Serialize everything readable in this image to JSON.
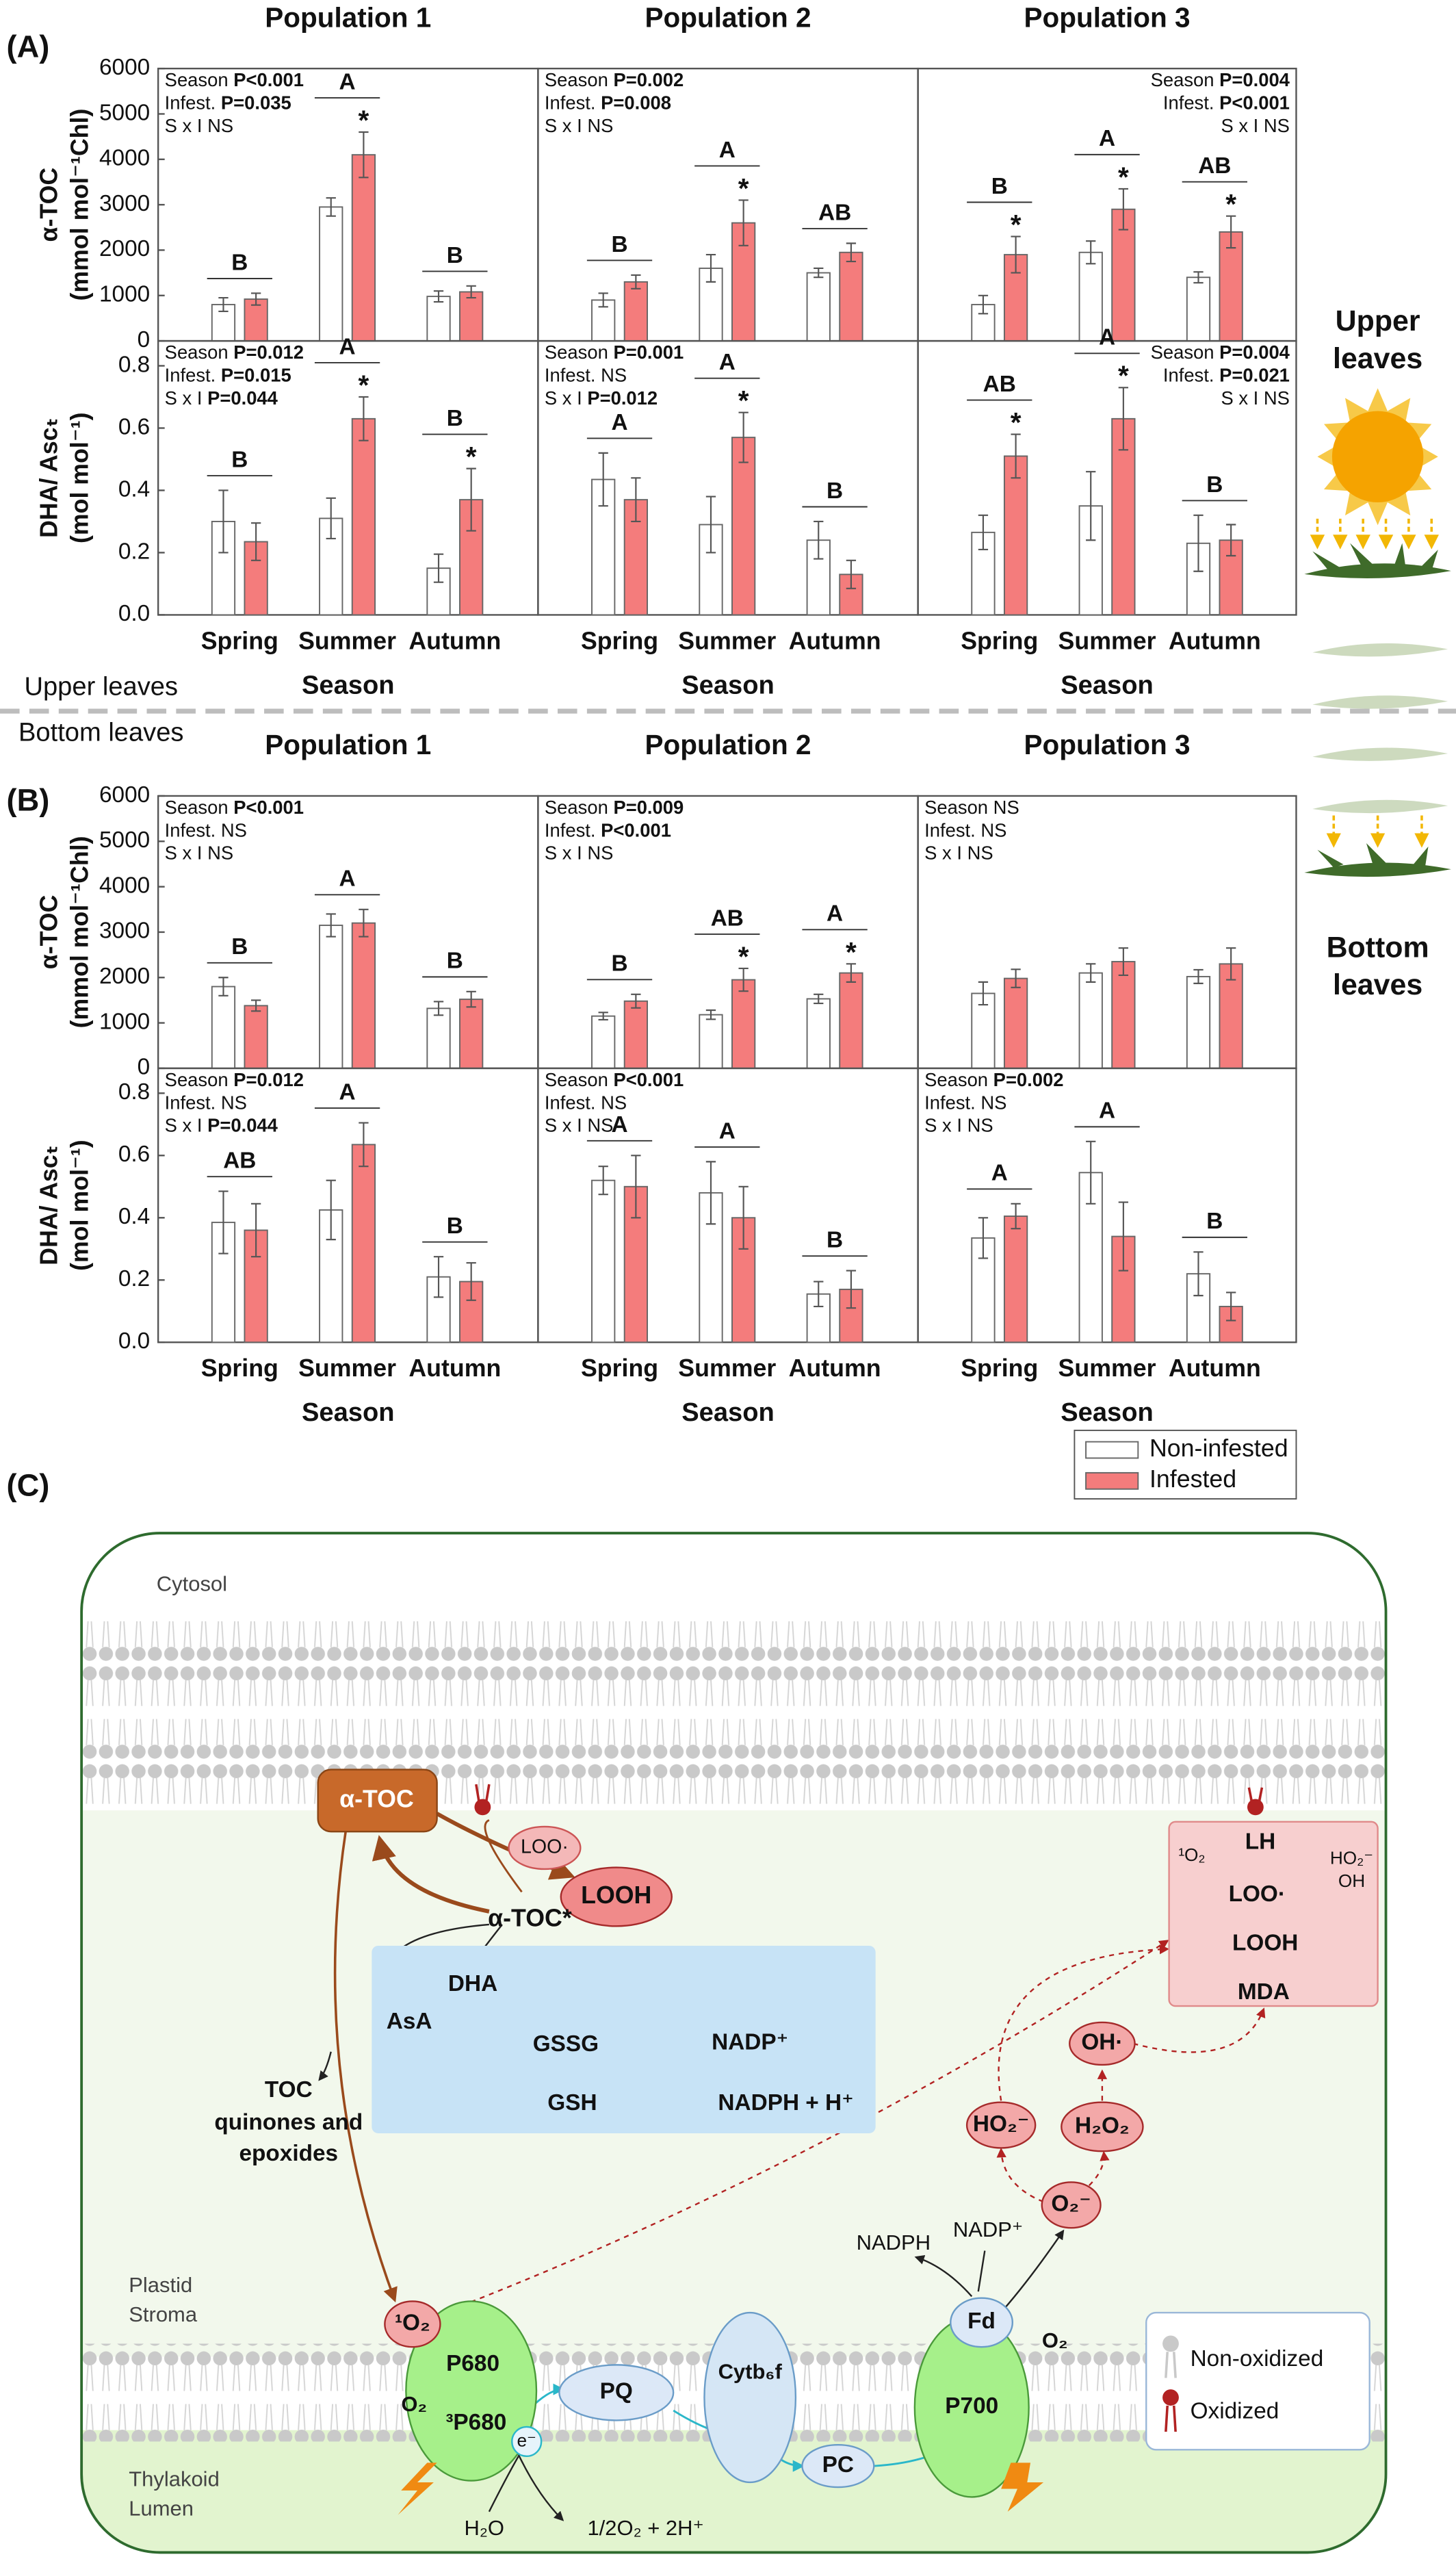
{
  "figure": {
    "panel_labels": [
      "(A)",
      "(B)",
      "(C)"
    ],
    "sections": [
      "Upper leaves",
      "Bottom leaves"
    ],
    "side_labels": [
      [
        "Upper",
        "leaves"
      ],
      [
        "Bottom",
        "leaves"
      ]
    ]
  },
  "chart_data": [
    {
      "type": "bar",
      "title": "Population 1",
      "ylabel": [
        "α-TOC",
        "(mmol mol⁻¹Chl)"
      ],
      "categories": [
        null,
        null,
        null
      ],
      "ylim": [
        0,
        6000
      ],
      "yticks": [
        0,
        1000,
        2000,
        3000,
        4000,
        5000,
        6000
      ],
      "series": [
        {
          "color": "#ffffff",
          "values": [
            800,
            2950,
            980
          ],
          "errors": [
            150,
            200,
            120
          ]
        },
        {
          "color": "#f47c7c",
          "values": [
            920,
            4100,
            1080
          ],
          "errors": [
            130,
            500,
            130
          ]
        }
      ],
      "group_letters": [
        "B",
        "A",
        "B"
      ],
      "asterisks": [
        null,
        "*",
        null
      ],
      "stats": [
        {
          "name": "Season",
          "result": "P<0.001"
        },
        {
          "name": "Infest.",
          "result": "P=0.035"
        },
        {
          "name": "S x I",
          "result": "NS"
        }
      ]
    },
    {
      "type": "bar",
      "title": "Population 2",
      "categories": [
        null,
        null,
        null
      ],
      "ylim": [
        0,
        6000
      ],
      "series": [
        {
          "color": "#ffffff",
          "values": [
            900,
            1600,
            1500
          ],
          "errors": [
            150,
            300,
            100
          ]
        },
        {
          "color": "#f47c7c",
          "values": [
            1300,
            2600,
            1950
          ],
          "errors": [
            150,
            500,
            200
          ]
        }
      ],
      "group_letters": [
        "B",
        "A",
        "AB"
      ],
      "asterisks": [
        null,
        "*",
        null
      ],
      "stats": [
        {
          "name": "Season",
          "result": "P=0.002"
        },
        {
          "name": "Infest.",
          "result": "P=0.008"
        },
        {
          "name": "S x I",
          "result": "NS"
        }
      ]
    },
    {
      "type": "bar",
      "title": "Population 3",
      "categories": [
        null,
        null,
        null
      ],
      "ylim": [
        0,
        6000
      ],
      "series": [
        {
          "color": "#ffffff",
          "values": [
            800,
            1950,
            1400
          ],
          "errors": [
            200,
            250,
            120
          ]
        },
        {
          "color": "#f47c7c",
          "values": [
            1900,
            2900,
            2400
          ],
          "errors": [
            400,
            450,
            350
          ]
        }
      ],
      "group_letters": [
        "B",
        "A",
        "AB"
      ],
      "asterisks": [
        "*",
        "*",
        "*"
      ],
      "stats": [
        {
          "name": "Season",
          "result": "P=0.004"
        },
        {
          "name": "Infest.",
          "result": "P<0.001"
        },
        {
          "name": "S x I",
          "result": "NS"
        }
      ]
    },
    {
      "type": "bar",
      "ylabel": [
        "DHA/ Ascₜ",
        "(mol mol⁻¹)"
      ],
      "xlabel": "Season",
      "categories": [
        "Spring",
        "Summer",
        "Autumn"
      ],
      "ylim": [
        0,
        0.88
      ],
      "yticks": [
        {
          "value": 0,
          "label": "0.0"
        },
        0.2,
        0.4,
        0.6,
        0.8
      ],
      "series": [
        {
          "color": "#ffffff",
          "values": [
            0.3,
            0.31,
            0.15
          ],
          "errors": [
            0.1,
            0.065,
            0.045
          ]
        },
        {
          "color": "#f47c7c",
          "values": [
            0.235,
            0.63,
            0.37
          ],
          "errors": [
            0.06,
            0.07,
            0.1
          ]
        }
      ],
      "group_letters": [
        "B",
        "A",
        "B"
      ],
      "asterisks": [
        null,
        "*",
        "*"
      ],
      "stats": [
        {
          "name": "Season",
          "result": "P=0.012"
        },
        {
          "name": "Infest.",
          "result": "P=0.015"
        },
        {
          "name": "S x I",
          "result": "P=0.044"
        }
      ]
    },
    {
      "type": "bar",
      "xlabel": "Season",
      "categories": [
        "Spring",
        "Summer",
        "Autumn"
      ],
      "ylim": [
        0,
        0.88
      ],
      "series": [
        {
          "color": "#ffffff",
          "values": [
            0.435,
            0.29,
            0.24
          ],
          "errors": [
            0.085,
            0.09,
            0.06
          ]
        },
        {
          "color": "#f47c7c",
          "values": [
            0.37,
            0.57,
            0.13
          ],
          "errors": [
            0.07,
            0.08,
            0.045
          ]
        }
      ],
      "group_letters": [
        "A",
        "A",
        "B"
      ],
      "asterisks": [
        null,
        "*",
        null
      ],
      "stats": [
        {
          "name": "Season",
          "result": "P=0.001"
        },
        {
          "name": "Infest.",
          "result": "NS"
        },
        {
          "name": "S x I",
          "result": "P=0.012"
        }
      ]
    },
    {
      "type": "bar",
      "xlabel": "Season",
      "categories": [
        "Spring",
        "Summer",
        "Autumn"
      ],
      "ylim": [
        0,
        0.88
      ],
      "series": [
        {
          "color": "#ffffff",
          "values": [
            0.265,
            0.35,
            0.23
          ],
          "errors": [
            0.055,
            0.11,
            0.09
          ]
        },
        {
          "color": "#f47c7c",
          "values": [
            0.51,
            0.63,
            0.24
          ],
          "errors": [
            0.07,
            0.1,
            0.05
          ]
        }
      ],
      "group_letters": [
        "AB",
        "A",
        "B"
      ],
      "asterisks": [
        "*",
        "*",
        null
      ],
      "stats": [
        {
          "name": "Season",
          "result": "P=0.004"
        },
        {
          "name": "Infest.",
          "result": "P=0.021"
        },
        {
          "name": "S x I",
          "result": "NS"
        }
      ]
    },
    {
      "type": "bar",
      "title": "Population 1",
      "ylabel": [
        "α-TOC",
        "(mmol mol⁻¹Chl)"
      ],
      "categories": [
        null,
        null,
        null
      ],
      "ylim": [
        0,
        6000
      ],
      "yticks": [
        0,
        1000,
        2000,
        3000,
        4000,
        5000,
        6000
      ],
      "series": [
        {
          "color": "#ffffff",
          "values": [
            1800,
            3150,
            1320
          ],
          "errors": [
            200,
            250,
            150
          ]
        },
        {
          "color": "#f47c7c",
          "values": [
            1380,
            3200,
            1520
          ],
          "errors": [
            120,
            300,
            170
          ]
        }
      ],
      "group_letters": [
        "B",
        "A",
        "B"
      ],
      "asterisks": [
        null,
        null,
        null
      ],
      "stats": [
        {
          "name": "Season",
          "result": "P<0.001"
        },
        {
          "name": "Infest.",
          "result": "NS"
        },
        {
          "name": "S x I",
          "result": "NS"
        }
      ]
    },
    {
      "type": "bar",
      "title": "Population 2",
      "categories": [
        null,
        null,
        null
      ],
      "ylim": [
        0,
        6000
      ],
      "series": [
        {
          "color": "#ffffff",
          "values": [
            1150,
            1180,
            1530
          ],
          "errors": [
            80,
            100,
            100
          ]
        },
        {
          "color": "#f47c7c",
          "values": [
            1480,
            1950,
            2100
          ],
          "errors": [
            150,
            250,
            200
          ]
        }
      ],
      "group_letters": [
        "B",
        "AB",
        "A"
      ],
      "asterisks": [
        null,
        "*",
        "*"
      ],
      "stats": [
        {
          "name": "Season",
          "result": "P=0.009"
        },
        {
          "name": "Infest.",
          "result": "P<0.001"
        },
        {
          "name": "S x I",
          "result": "NS"
        }
      ]
    },
    {
      "type": "bar",
      "title": "Population 3",
      "categories": [
        null,
        null,
        null
      ],
      "ylim": [
        0,
        6000
      ],
      "series": [
        {
          "color": "#ffffff",
          "values": [
            1650,
            2100,
            2020
          ],
          "errors": [
            250,
            200,
            150
          ]
        },
        {
          "color": "#f47c7c",
          "values": [
            1980,
            2350,
            2300
          ],
          "errors": [
            200,
            300,
            350
          ]
        }
      ],
      "group_letters": [
        null,
        null,
        null
      ],
      "asterisks": [
        null,
        null,
        null
      ],
      "stats": [
        {
          "name": "Season",
          "result": "NS"
        },
        {
          "name": "Infest.",
          "result": "NS"
        },
        {
          "name": "S x I",
          "result": "NS"
        }
      ]
    },
    {
      "type": "bar",
      "ylabel": [
        "DHA/ Ascₜ",
        "(mol mol⁻¹)"
      ],
      "xlabel": "Season",
      "categories": [
        "Spring",
        "Summer",
        "Autumn"
      ],
      "ylim": [
        0,
        0.88
      ],
      "yticks": [
        {
          "value": 0,
          "label": "0.0"
        },
        0.2,
        0.4,
        0.6,
        0.8
      ],
      "series": [
        {
          "color": "#ffffff",
          "values": [
            0.385,
            0.425,
            0.21
          ],
          "errors": [
            0.1,
            0.095,
            0.065
          ]
        },
        {
          "color": "#f47c7c",
          "values": [
            0.36,
            0.635,
            0.195
          ],
          "errors": [
            0.085,
            0.07,
            0.06
          ]
        }
      ],
      "group_letters": [
        "AB",
        "A",
        "B"
      ],
      "asterisks": [
        null,
        null,
        null
      ],
      "stats": [
        {
          "name": "Season",
          "result": "P=0.012"
        },
        {
          "name": "Infest.",
          "result": "NS"
        },
        {
          "name": "S x I",
          "result": "P=0.044"
        }
      ]
    },
    {
      "type": "bar",
      "xlabel": "Season",
      "categories": [
        "Spring",
        "Summer",
        "Autumn"
      ],
      "ylim": [
        0,
        0.88
      ],
      "series": [
        {
          "color": "#ffffff",
          "values": [
            0.52,
            0.48,
            0.155
          ],
          "errors": [
            0.045,
            0.1,
            0.04
          ]
        },
        {
          "color": "#f47c7c",
          "values": [
            0.5,
            0.4,
            0.17
          ],
          "errors": [
            0.1,
            0.1,
            0.06
          ]
        }
      ],
      "group_letters": [
        "A",
        "A",
        "B"
      ],
      "asterisks": [
        null,
        null,
        null
      ],
      "stats": [
        {
          "name": "Season",
          "result": "P<0.001"
        },
        {
          "name": "Infest.",
          "result": "NS"
        },
        {
          "name": "S x I",
          "result": "NS"
        }
      ]
    },
    {
      "type": "bar",
      "xlabel": "Season",
      "categories": [
        "Spring",
        "Summer",
        "Autumn"
      ],
      "ylim": [
        0,
        0.88
      ],
      "series": [
        {
          "name": "Non-infested",
          "color": "#ffffff",
          "values": [
            0.335,
            0.545,
            0.22
          ],
          "errors": [
            0.065,
            0.1,
            0.07
          ]
        },
        {
          "name": "Infested",
          "color": "#f47c7c",
          "values": [
            0.405,
            0.34,
            0.115
          ],
          "errors": [
            0.04,
            0.11,
            0.045
          ]
        }
      ],
      "group_letters": [
        "A",
        "A",
        "B"
      ],
      "asterisks": [
        null,
        null,
        null
      ],
      "stats": [
        {
          "name": "Season",
          "result": "P=0.002"
        },
        {
          "name": "Infest.",
          "result": "NS"
        },
        {
          "name": "S x I",
          "result": "NS"
        }
      ]
    }
  ],
  "diagram": {
    "texts": {
      "cytosol": "Cytosol",
      "atoc": "α-TOC",
      "loo": "LOO·",
      "looh": "LOOH",
      "atoc_star": "α-TOC*",
      "dha": "DHA",
      "asa": "AsA",
      "gssg": "GSSG",
      "gsh": "GSH",
      "nadp_blue": "NADP⁺",
      "nadph_h": "NADPH + H⁺",
      "toc_products": [
        "TOC",
        "quinones and",
        "epoxides"
      ],
      "stroma": [
        "Plastid",
        "Stroma"
      ],
      "singlet_o2": "¹O₂",
      "p680": "P680",
      "o2_left": "O₂",
      "p680_triplet": "³P680",
      "pq": "PQ",
      "cytb6f": "Cytb₆f",
      "electron": "e⁻",
      "pc": "PC",
      "p700": "P700",
      "fd": "Fd",
      "nadph": "NADPH",
      "nadp": "NADP⁺",
      "o2_right": "O₂",
      "superoxide": "O₂⁻",
      "ho2": "HO₂⁻",
      "h2o2": "H₂O₂",
      "oh": "OH·",
      "lh": "LH",
      "loo_box": "LOO·",
      "looh_box": "LOOH",
      "mda": "MDA",
      "singlet_box": "¹O₂",
      "ho2_oh": [
        "HO₂⁻",
        "OH"
      ],
      "non_oxidized": "Non-oxidized",
      "oxidized": "Oxidized",
      "lumen": [
        "Thylakoid",
        "Lumen"
      ],
      "h2o": "H₂O",
      "water_products": "1/2O₂ + 2H⁺"
    }
  }
}
